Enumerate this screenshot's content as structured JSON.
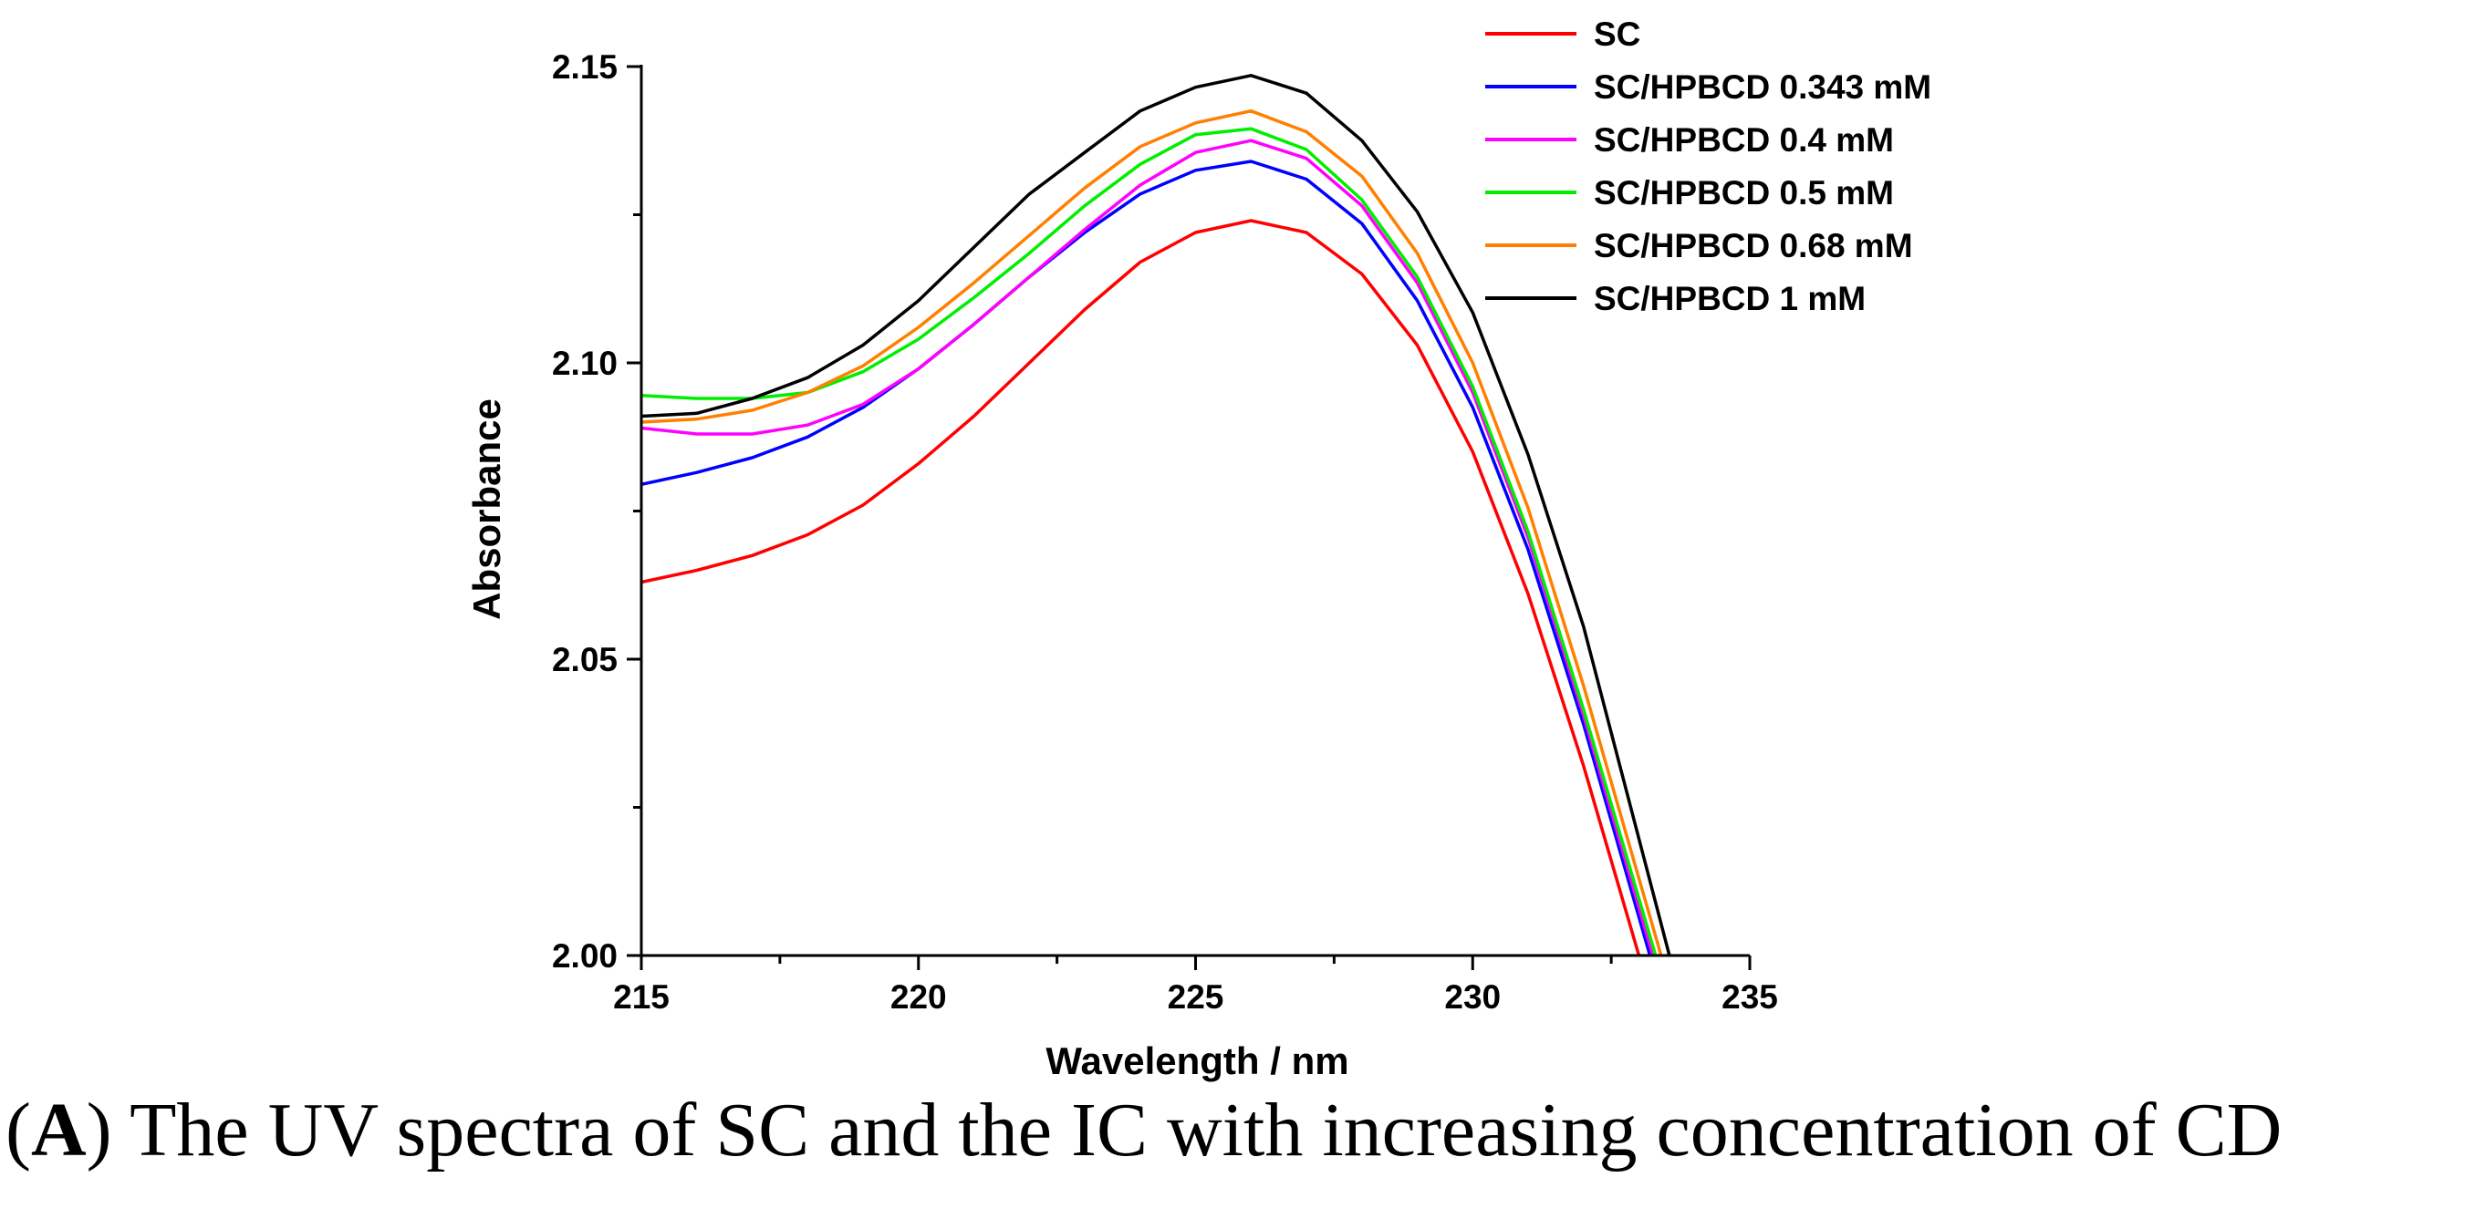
{
  "chart_data": {
    "type": "line",
    "title": "",
    "xlabel": "Wavelength / nm",
    "ylabel": "Absorbance",
    "xlim": [
      215,
      235
    ],
    "ylim": [
      2.0,
      2.15
    ],
    "xticks": [
      215,
      220,
      225,
      230,
      235
    ],
    "xtick_labels": [
      "215",
      "220",
      "225",
      "230",
      "235"
    ],
    "yticks": [
      2.0,
      2.05,
      2.1,
      2.15
    ],
    "ytick_labels": [
      "2.00",
      "2.05",
      "2.10",
      "2.15"
    ],
    "grid": false,
    "legend_position": "top-right",
    "series": [
      {
        "name": "SC",
        "color": "#ff0000",
        "x": [
          215,
          216,
          217,
          218,
          219,
          220,
          221,
          222,
          223,
          224,
          225,
          226,
          227,
          228,
          229,
          230,
          231,
          232,
          233
        ],
        "y": [
          2.063,
          2.065,
          2.0675,
          2.071,
          2.076,
          2.083,
          2.091,
          2.1,
          2.109,
          2.117,
          2.122,
          2.124,
          2.122,
          2.115,
          2.103,
          2.085,
          2.061,
          2.032,
          2.0
        ]
      },
      {
        "name": "SC/HPBCD 0.343 mM",
        "color": "#0000ff",
        "x": [
          215,
          216,
          217,
          218,
          219,
          220,
          221,
          222,
          223,
          224,
          225,
          226,
          227,
          228,
          229,
          230,
          231,
          232,
          233.2
        ],
        "y": [
          2.0795,
          2.0815,
          2.084,
          2.0875,
          2.0925,
          2.099,
          2.1065,
          2.1145,
          2.122,
          2.1285,
          2.1325,
          2.134,
          2.131,
          2.1235,
          2.1105,
          2.0925,
          2.0685,
          2.039,
          2.0
        ]
      },
      {
        "name": "SC/HPBCD 0.4 mM",
        "color": "#ff00ff",
        "x": [
          215,
          216,
          217,
          218,
          219,
          220,
          221,
          222,
          223,
          224,
          225,
          226,
          227,
          228,
          229,
          230,
          231,
          232,
          233.25
        ],
        "y": [
          2.089,
          2.088,
          2.088,
          2.0895,
          2.093,
          2.099,
          2.1065,
          2.1145,
          2.1225,
          2.13,
          2.1355,
          2.1375,
          2.1345,
          2.1265,
          2.1135,
          2.095,
          2.0705,
          2.0405,
          2.0
        ]
      },
      {
        "name": "SC/HPBCD 0.5 mM",
        "color": "#00ee00",
        "x": [
          215,
          216,
          217,
          218,
          219,
          220,
          221,
          222,
          223,
          224,
          225,
          226,
          227,
          228,
          229,
          230,
          231,
          232,
          233.3
        ],
        "y": [
          2.0945,
          2.094,
          2.094,
          2.095,
          2.0985,
          2.104,
          2.111,
          2.1185,
          2.1265,
          2.1335,
          2.1385,
          2.1395,
          2.136,
          2.1275,
          2.1145,
          2.096,
          2.0715,
          2.0415,
          2.0
        ]
      },
      {
        "name": "SC/HPBCD 0.68 mM",
        "color": "#ff8000",
        "x": [
          215,
          216,
          217,
          218,
          219,
          220,
          221,
          222,
          223,
          224,
          225,
          226,
          227,
          228,
          229,
          230,
          231,
          232,
          233.4
        ],
        "y": [
          2.09,
          2.0905,
          2.092,
          2.095,
          2.0995,
          2.106,
          2.1135,
          2.1215,
          2.1295,
          2.1365,
          2.1405,
          2.1425,
          2.139,
          2.1315,
          2.1185,
          2.1,
          2.0755,
          2.0455,
          2.0
        ]
      },
      {
        "name": "SC/HPBCD 1 mM",
        "color": "#000000",
        "x": [
          215,
          216,
          217,
          218,
          219,
          220,
          221,
          222,
          223,
          224,
          225,
          226,
          227,
          228,
          229,
          230,
          231,
          232,
          233.55
        ],
        "y": [
          2.091,
          2.0915,
          2.094,
          2.0975,
          2.103,
          2.1105,
          2.1195,
          2.1285,
          2.1355,
          2.1425,
          2.1465,
          2.1485,
          2.1455,
          2.1375,
          2.1255,
          2.1085,
          2.0845,
          2.0555,
          2.0
        ]
      }
    ]
  },
  "caption": {
    "label": "A",
    "text": " The UV spectra of SC and the IC with increasing concentration of CD"
  }
}
